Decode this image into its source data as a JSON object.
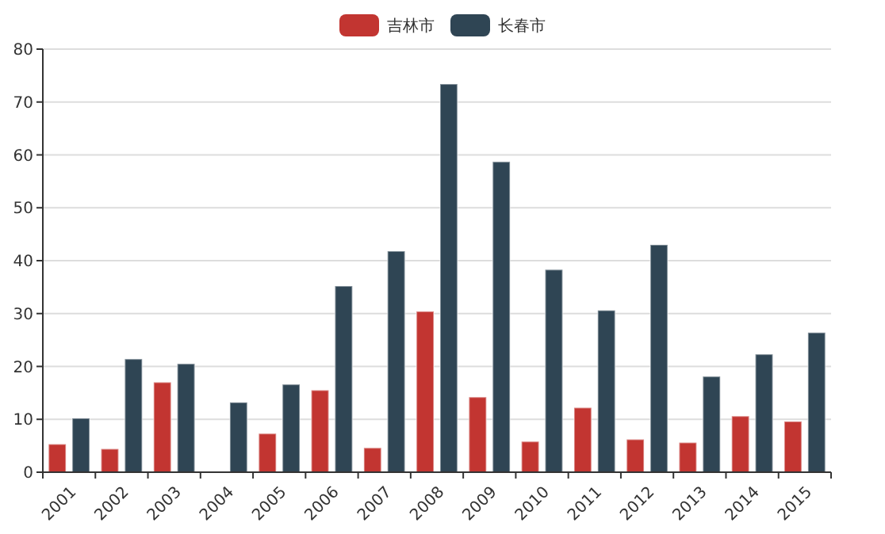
{
  "chart_data": {
    "type": "bar",
    "categories": [
      "2001",
      "2002",
      "2003",
      "2004",
      "2005",
      "2006",
      "2007",
      "2008",
      "2009",
      "2010",
      "2011",
      "2012",
      "2013",
      "2014",
      "2015"
    ],
    "series": [
      {
        "name": "吉林市",
        "color": "#c23531",
        "values": [
          5.3,
          4.4,
          17,
          0,
          7.3,
          15.5,
          4.6,
          30.4,
          14.2,
          5.8,
          12.2,
          6.2,
          5.6,
          10.6,
          9.6
        ]
      },
      {
        "name": "长春市",
        "color": "#2f4554",
        "values": [
          10.2,
          21.4,
          20.5,
          13.2,
          16.6,
          35.2,
          41.8,
          73.4,
          58.7,
          38.3,
          30.6,
          43,
          18.1,
          22.3,
          26.4
        ]
      }
    ],
    "ylim": [
      0,
      80
    ],
    "yticks": [
      0,
      10,
      20,
      30,
      40,
      50,
      60,
      70,
      80
    ],
    "grid": "y",
    "legend": "top"
  }
}
